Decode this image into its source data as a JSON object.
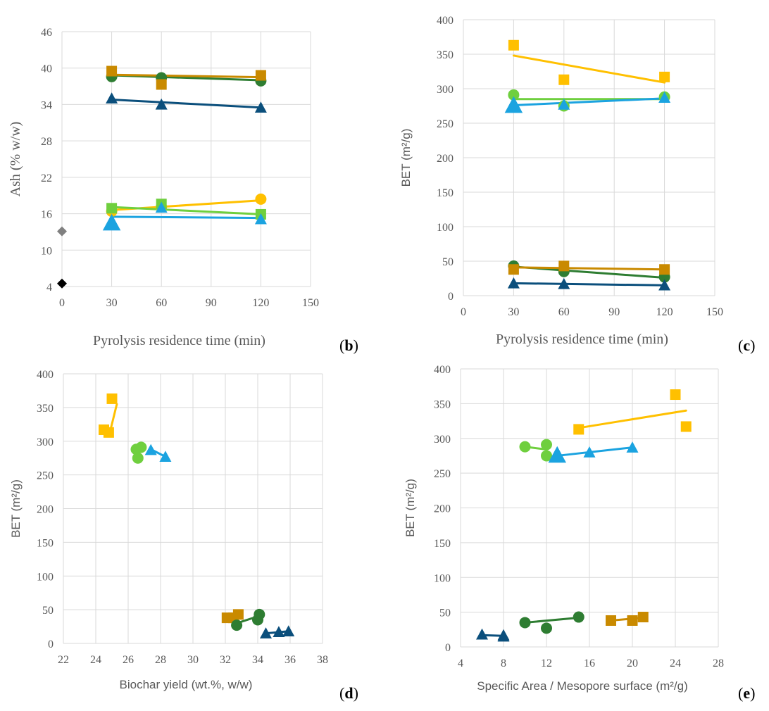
{
  "colors": {
    "dark_green": "#2e7d32",
    "dark_orange": "#c98a00",
    "navy": "#0b4f7c",
    "light_green": "#6fcf3e",
    "light_blue": "#1ba3e0",
    "gold": "#ffc000",
    "gray": "#808080",
    "black": "#000000"
  },
  "chart_data": [
    {
      "id": "b",
      "type": "line",
      "panel_label": "b",
      "xlabel": "Pyrolysis residence time (min)",
      "ylabel": "Ash (% w/w)",
      "xlim": [
        0,
        150
      ],
      "ylim": [
        4,
        46
      ],
      "xticks": [
        0,
        30,
        60,
        90,
        120,
        150
      ],
      "yticks": [
        4,
        10,
        16,
        22,
        28,
        34,
        40,
        46
      ],
      "grid": true,
      "series": [
        {
          "name": "dark green circle",
          "color": "#2e7d32",
          "marker": "circle",
          "points": [
            [
              30,
              38.6
            ],
            [
              60,
              38.4
            ],
            [
              120,
              37.9
            ]
          ],
          "trend": [
            [
              30,
              38.8
            ],
            [
              120,
              38.0
            ]
          ]
        },
        {
          "name": "dark orange square",
          "color": "#c98a00",
          "marker": "square",
          "points": [
            [
              30,
              39.5
            ],
            [
              60,
              37.3
            ],
            [
              120,
              38.8
            ]
          ],
          "trend": [
            [
              30,
              38.9
            ],
            [
              120,
              38.5
            ]
          ]
        },
        {
          "name": "navy triangle",
          "color": "#0b4f7c",
          "marker": "triangle",
          "points": [
            [
              30,
              35.0
            ],
            [
              60,
              34.0
            ],
            [
              120,
              33.5
            ]
          ],
          "trend": [
            [
              30,
              34.8
            ],
            [
              120,
              33.5
            ]
          ]
        },
        {
          "name": "gold circle",
          "color": "#ffc000",
          "marker": "circle",
          "points": [
            [
              30,
              16.4
            ],
            [
              60,
              17.1
            ],
            [
              120,
              18.4
            ]
          ],
          "trend": [
            [
              30,
              16.6
            ],
            [
              120,
              18.2
            ]
          ]
        },
        {
          "name": "light green square",
          "color": "#6fcf3e",
          "marker": "square",
          "points": [
            [
              30,
              16.9
            ],
            [
              60,
              17.6
            ],
            [
              120,
              15.9
            ]
          ],
          "trend": [
            [
              30,
              17.1
            ],
            [
              120,
              15.9
            ]
          ]
        },
        {
          "name": "light blue triangle",
          "color": "#1ba3e0",
          "marker": "triangle",
          "big_first": true,
          "points": [
            [
              30,
              14.5
            ],
            [
              60,
              17.0
            ],
            [
              120,
              15.1
            ]
          ],
          "trend": [
            [
              30,
              15.5
            ],
            [
              120,
              15.3
            ]
          ]
        },
        {
          "name": "gray diamond",
          "color": "#808080",
          "marker": "diamond",
          "points": [
            [
              0,
              13.1
            ]
          ]
        },
        {
          "name": "black diamond",
          "color": "#000000",
          "marker": "diamond",
          "points": [
            [
              0,
              4.5
            ]
          ]
        }
      ]
    },
    {
      "id": "c",
      "type": "line",
      "panel_label": "c",
      "xlabel": "Pyrolysis residence time (min)",
      "ylabel": "BET (m²/g)",
      "xlim": [
        0,
        150
      ],
      "ylim": [
        0,
        400
      ],
      "xticks": [
        0,
        30,
        60,
        90,
        120,
        150
      ],
      "yticks": [
        0,
        50,
        100,
        150,
        200,
        250,
        300,
        350,
        400
      ],
      "grid": true,
      "series": [
        {
          "name": "gold square",
          "color": "#ffc000",
          "marker": "square",
          "points": [
            [
              30,
              363
            ],
            [
              60,
              313
            ],
            [
              120,
              317
            ]
          ],
          "trend": [
            [
              30,
              348
            ],
            [
              120,
              309
            ]
          ]
        },
        {
          "name": "light green circle",
          "color": "#6fcf3e",
          "marker": "circle",
          "points": [
            [
              30,
              291
            ],
            [
              60,
              275
            ],
            [
              120,
              288
            ]
          ],
          "trend": [
            [
              30,
              285
            ],
            [
              120,
              285
            ]
          ]
        },
        {
          "name": "light blue triangle",
          "color": "#1ba3e0",
          "marker": "triangle",
          "big_first": true,
          "points": [
            [
              30,
              276
            ],
            [
              60,
              277
            ],
            [
              120,
              287
            ]
          ],
          "trend": [
            [
              30,
              276
            ],
            [
              120,
              286
            ]
          ]
        },
        {
          "name": "dark green circle",
          "color": "#2e7d32",
          "marker": "circle",
          "points": [
            [
              30,
              43
            ],
            [
              60,
              35
            ],
            [
              120,
              27
            ]
          ],
          "trend": [
            [
              30,
              42
            ],
            [
              120,
              26
            ]
          ]
        },
        {
          "name": "dark orange square",
          "color": "#c98a00",
          "marker": "square",
          "points": [
            [
              30,
              38
            ],
            [
              60,
              43
            ],
            [
              120,
              38
            ]
          ],
          "trend": [
            [
              30,
              41
            ],
            [
              120,
              38
            ]
          ]
        },
        {
          "name": "navy triangle",
          "color": "#0b4f7c",
          "marker": "triangle",
          "points": [
            [
              30,
              18
            ],
            [
              60,
              17
            ],
            [
              120,
              15
            ]
          ],
          "trend": [
            [
              30,
              18
            ],
            [
              120,
              15
            ]
          ]
        }
      ]
    },
    {
      "id": "d",
      "type": "scatter",
      "panel_label": "d",
      "xlabel": "Biochar yield (wt.%, w/w)",
      "ylabel": "BET (m²/g)",
      "xlim": [
        22,
        38
      ],
      "ylim": [
        0,
        400
      ],
      "xticks": [
        22,
        24,
        26,
        28,
        30,
        32,
        34,
        36,
        38
      ],
      "yticks": [
        0,
        50,
        100,
        150,
        200,
        250,
        300,
        350,
        400
      ],
      "grid": true,
      "series": [
        {
          "name": "gold square",
          "color": "#ffc000",
          "marker": "square",
          "points": [
            [
              25.0,
              363
            ],
            [
              24.5,
              317
            ],
            [
              24.8,
              313
            ]
          ],
          "trend": [
            [
              24.9,
              316
            ],
            [
              25.3,
              355
            ]
          ]
        },
        {
          "name": "light green circle",
          "color": "#6fcf3e",
          "marker": "circle",
          "points": [
            [
              26.8,
              291
            ],
            [
              26.5,
              288
            ],
            [
              26.6,
              275
            ]
          ]
        },
        {
          "name": "light blue triangle",
          "color": "#1ba3e0",
          "marker": "triangle",
          "points": [
            [
              27.4,
              287
            ],
            [
              28.3,
              277
            ]
          ],
          "trend": [
            [
              27.4,
              288
            ],
            [
              28.3,
              277
            ]
          ]
        },
        {
          "name": "dark orange square",
          "color": "#c98a00",
          "marker": "square",
          "points": [
            [
              32.1,
              38
            ],
            [
              32.8,
              43
            ],
            [
              32.5,
              38
            ]
          ]
        },
        {
          "name": "dark green circle",
          "color": "#2e7d32",
          "marker": "circle",
          "points": [
            [
              34.1,
              43
            ],
            [
              34.0,
              35
            ],
            [
              32.7,
              27
            ]
          ],
          "trend": [
            [
              32.7,
              30
            ],
            [
              34.0,
              40
            ]
          ]
        },
        {
          "name": "navy triangle",
          "color": "#0b4f7c",
          "marker": "triangle",
          "points": [
            [
              34.5,
              15
            ],
            [
              35.3,
              17
            ],
            [
              35.9,
              18
            ]
          ],
          "trend": [
            [
              34.5,
              15
            ],
            [
              35.9,
              18
            ]
          ]
        }
      ]
    },
    {
      "id": "e",
      "type": "scatter",
      "panel_label": "e",
      "xlabel": "Specific Area / Mesopore surface (m²/g)",
      "ylabel": "BET (m²/g)",
      "xlim": [
        4,
        28
      ],
      "ylim": [
        0,
        400
      ],
      "xticks": [
        4,
        8,
        12,
        16,
        20,
        24,
        28
      ],
      "yticks": [
        0,
        50,
        100,
        150,
        200,
        250,
        300,
        350,
        400
      ],
      "grid": true,
      "series": [
        {
          "name": "gold square",
          "color": "#ffc000",
          "marker": "square",
          "points": [
            [
              24,
              363
            ],
            [
              15,
              313
            ],
            [
              25,
              317
            ]
          ],
          "trend": [
            [
              15,
              315
            ],
            [
              25,
              340
            ]
          ]
        },
        {
          "name": "light green circle",
          "color": "#6fcf3e",
          "marker": "circle",
          "points": [
            [
              10,
              288
            ],
            [
              12,
              291
            ],
            [
              12,
              275
            ]
          ],
          "trend": [
            [
              10,
              288
            ],
            [
              12,
              284
            ]
          ]
        },
        {
          "name": "light blue triangle",
          "color": "#1ba3e0",
          "marker": "triangle",
          "big_first": true,
          "points": [
            [
              13,
              276
            ],
            [
              16,
              280
            ],
            [
              20,
              287
            ]
          ],
          "trend": [
            [
              13,
              275
            ],
            [
              20,
              287
            ]
          ]
        },
        {
          "name": "dark green circle",
          "color": "#2e7d32",
          "marker": "circle",
          "points": [
            [
              10,
              35
            ],
            [
              12,
              27
            ],
            [
              15,
              43
            ]
          ],
          "trend": [
            [
              10,
              35
            ],
            [
              15,
              42
            ]
          ]
        },
        {
          "name": "dark orange square",
          "color": "#c98a00",
          "marker": "square",
          "points": [
            [
              18,
              38
            ],
            [
              20,
              38
            ],
            [
              21,
              43
            ]
          ],
          "trend": [
            [
              18,
              38
            ],
            [
              21,
              42
            ]
          ]
        },
        {
          "name": "navy triangle",
          "color": "#0b4f7c",
          "marker": "triangle",
          "points": [
            [
              6,
              18
            ],
            [
              8,
              17
            ],
            [
              8,
              15
            ]
          ],
          "trend": [
            [
              6,
              17
            ],
            [
              8,
              16
            ]
          ]
        }
      ]
    }
  ]
}
